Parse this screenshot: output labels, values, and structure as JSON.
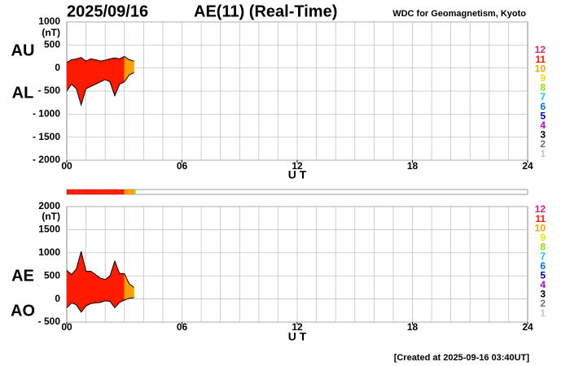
{
  "header": {
    "date": "2025/09/16",
    "title": "AE(11) (Real-Time)",
    "source": "WDC for Geomagnetism, Kyoto"
  },
  "footer": "[Created at 2025-09-16 03:40UT]",
  "legend": {
    "labels": [
      "12",
      "11",
      "10",
      "9",
      "8",
      "7",
      "6",
      "5",
      "4",
      "3",
      "2",
      "1"
    ],
    "colors": [
      "#f0206e",
      "#ff1a00",
      "#ffa000",
      "#e8e800",
      "#90e000",
      "#00d8d8",
      "#0070ff",
      "#0000b0",
      "#c000c0",
      "#000000",
      "#707070",
      "#c8c8c8"
    ]
  },
  "chart_data": [
    {
      "type": "area",
      "unit": "(nT)",
      "x_label": "U T",
      "x": [
        0,
        0.25,
        0.5,
        0.75,
        1,
        1.25,
        1.5,
        1.75,
        2,
        2.25,
        2.5,
        2.75,
        3,
        3.25,
        3.5
      ],
      "stations": [
        11,
        11,
        11,
        11,
        11,
        11,
        11,
        11,
        11,
        11,
        11,
        11,
        10,
        10,
        8
      ],
      "series": [
        {
          "name": "AU",
          "values": [
            120,
            180,
            200,
            230,
            150,
            200,
            180,
            150,
            170,
            200,
            220,
            200,
            250,
            180,
            150
          ]
        },
        {
          "name": "AL",
          "values": [
            -500,
            -350,
            -450,
            -800,
            -450,
            -400,
            -350,
            -300,
            -250,
            -300,
            -600,
            -350,
            -300,
            -150,
            -100
          ]
        }
      ],
      "xlim": [
        0,
        24
      ],
      "xticks": [
        {
          "value": 0,
          "label": "00"
        },
        {
          "value": 6,
          "label": "06"
        },
        {
          "value": 12,
          "label": "12"
        },
        {
          "value": 18,
          "label": "18"
        },
        {
          "value": 24,
          "label": "24"
        }
      ],
      "ylim": [
        -2000,
        1000
      ],
      "yticks": [
        1000,
        500,
        0,
        {
          "value": -500,
          "label": "- 500"
        },
        {
          "value": -1000,
          "label": "- 1000"
        },
        {
          "value": -1500,
          "label": "- 1500"
        },
        {
          "value": -2000,
          "label": "- 2000"
        }
      ],
      "grid": true,
      "grid_step": 1
    },
    {
      "type": "area",
      "unit": "(nT)",
      "x_label": "U T",
      "x": [
        0,
        0.25,
        0.5,
        0.75,
        1,
        1.25,
        1.5,
        1.75,
        2,
        2.25,
        2.5,
        2.75,
        3,
        3.25,
        3.5
      ],
      "stations": [
        11,
        11,
        11,
        11,
        11,
        11,
        11,
        11,
        11,
        11,
        11,
        11,
        10,
        10,
        8
      ],
      "series": [
        {
          "name": "AE",
          "values": [
            620,
            530,
            650,
            1030,
            600,
            600,
            530,
            450,
            420,
            500,
            820,
            550,
            550,
            330,
            250
          ]
        },
        {
          "name": "AO",
          "values": [
            -190,
            -85,
            -125,
            -285,
            -150,
            -100,
            -85,
            -75,
            -40,
            -50,
            -190,
            -75,
            -25,
            15,
            25
          ]
        }
      ],
      "xlim": [
        0,
        24
      ],
      "xticks": [
        {
          "value": 0,
          "label": "00"
        },
        {
          "value": 6,
          "label": "06"
        },
        {
          "value": 12,
          "label": "12"
        },
        {
          "value": 18,
          "label": "18"
        },
        {
          "value": 24,
          "label": "24"
        }
      ],
      "ylim": [
        -500,
        2000
      ],
      "yticks": [
        2000,
        1500,
        1000,
        500,
        0,
        {
          "value": -500,
          "label": "- 500"
        }
      ],
      "grid": true,
      "grid_step": 1
    }
  ]
}
